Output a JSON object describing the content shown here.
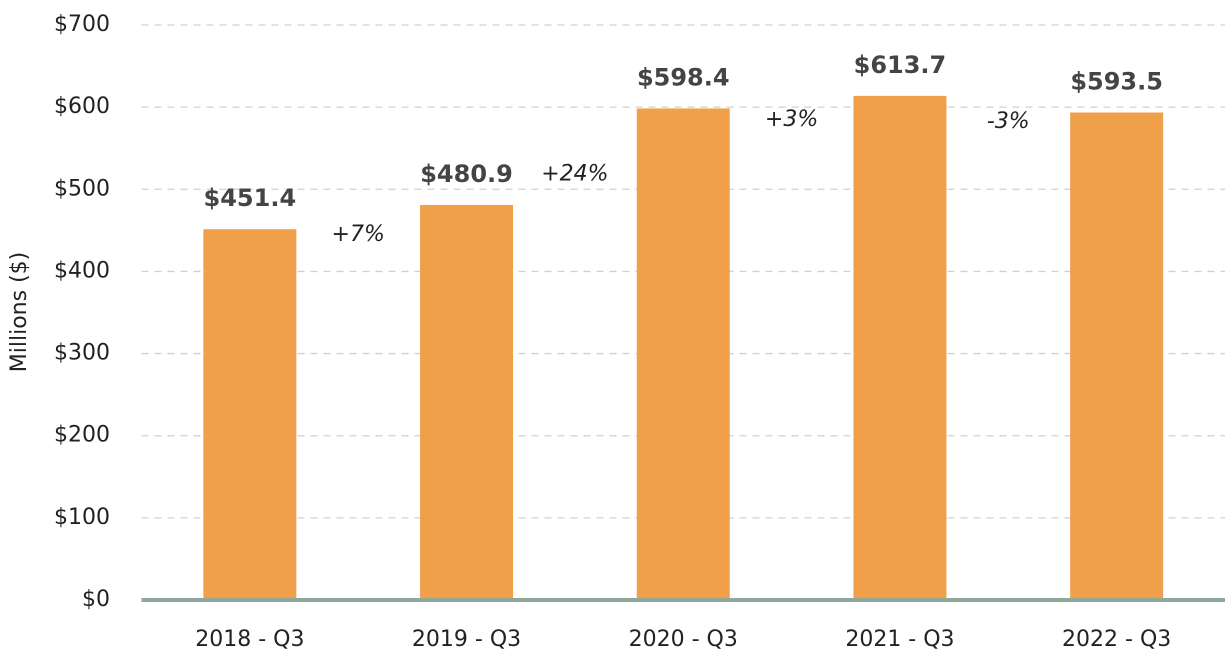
{
  "chart_data": {
    "type": "bar",
    "ylabel": "Millions ($)",
    "categories": [
      "2018 - Q3",
      "2019 - Q3",
      "2020 - Q3",
      "2021 - Q3",
      "2022 - Q3"
    ],
    "values": [
      451.4,
      480.9,
      598.4,
      613.7,
      593.5
    ],
    "value_labels": [
      "$451.4",
      "$480.9",
      "$598.4",
      "$613.7",
      "$593.5"
    ],
    "color": "#f0a04b",
    "ylim": [
      0,
      700
    ],
    "yticks": [
      {
        "value": 0,
        "label": "$0"
      },
      {
        "value": 100,
        "label": "$100"
      },
      {
        "value": 200,
        "label": "$200"
      },
      {
        "value": 300,
        "label": "$300"
      },
      {
        "value": 400,
        "label": "$400"
      },
      {
        "value": 500,
        "label": "$500"
      },
      {
        "value": 600,
        "label": "$600"
      },
      {
        "value": 700,
        "label": "$700"
      }
    ],
    "grid": true,
    "annotations": [
      {
        "text": "+7%",
        "color": "#8faa96"
      },
      {
        "text": "+24%",
        "color": "#8faa96"
      },
      {
        "text": "+3%",
        "color": "#8faa96"
      },
      {
        "text": "-3%",
        "color": "#d9472f"
      }
    ]
  }
}
